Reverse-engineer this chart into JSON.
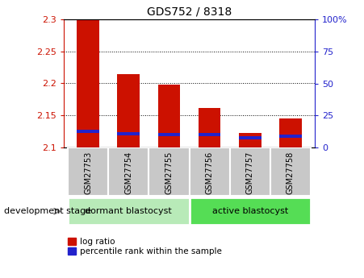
{
  "title": "GDS752 / 8318",
  "samples": [
    "GSM27753",
    "GSM27754",
    "GSM27755",
    "GSM27756",
    "GSM27757",
    "GSM27758"
  ],
  "log_ratio_values": [
    2.3,
    2.215,
    2.198,
    2.162,
    2.122,
    2.145
  ],
  "log_ratio_base": 2.1,
  "percentile_bottom": [
    2.122,
    2.119,
    2.117,
    2.117,
    2.112,
    2.115
  ],
  "percentile_top": [
    2.128,
    2.124,
    2.122,
    2.122,
    2.117,
    2.12
  ],
  "ylim": [
    2.1,
    2.3
  ],
  "yticks": [
    2.1,
    2.15,
    2.2,
    2.25,
    2.3
  ],
  "ytick_labels": [
    "2.1",
    "2.15",
    "2.2",
    "2.25",
    "2.3"
  ],
  "y2ticks": [
    0,
    25,
    50,
    75,
    100
  ],
  "y2tick_labels": [
    "0",
    "25",
    "50",
    "75",
    "100%"
  ],
  "group_labels": [
    "dormant blastocyst",
    "active blastocyst"
  ],
  "group_ranges": [
    [
      0,
      3
    ],
    [
      3,
      6
    ]
  ],
  "group_colors_light": [
    "#b8e8b8",
    "#66dd66"
  ],
  "xlabel_left": "development stage",
  "bar_color_red": "#CC1100",
  "bar_color_blue": "#2222CC",
  "bg_color_ticks": "#C8C8C8",
  "bar_width": 0.55,
  "grid_color": "black",
  "legend_labels": [
    "log ratio",
    "percentile rank within the sample"
  ]
}
